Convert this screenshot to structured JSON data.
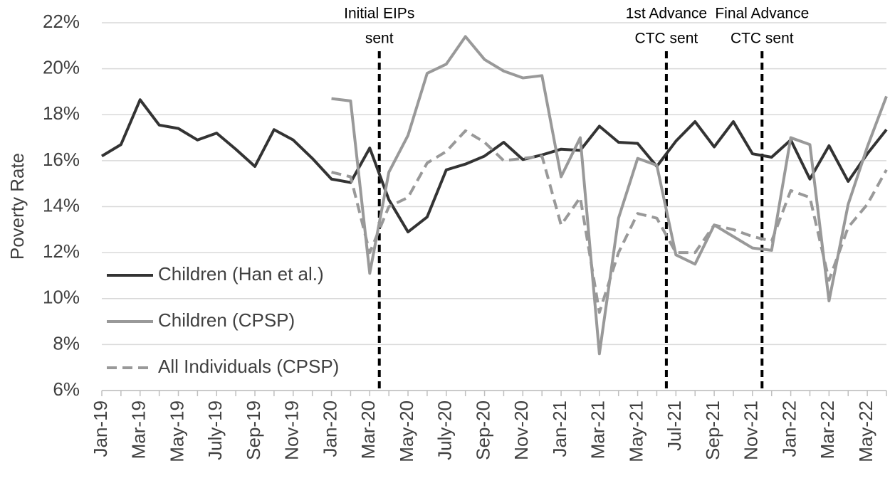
{
  "chart_data": {
    "type": "line",
    "y_label": "Poverty Rate",
    "categories": [
      "Jan-19",
      null,
      "Mar-19",
      null,
      "May-19",
      null,
      "July-19",
      null,
      "Sep-19",
      null,
      "Nov-19",
      null,
      "Jan-20",
      null,
      "Mar-20",
      null,
      "May-20",
      null,
      "July-20",
      null,
      "Sep-20",
      null,
      "Nov-20",
      null,
      "Jan-21",
      null,
      "Mar-21",
      null,
      "May-21",
      null,
      "Jul-21",
      null,
      "Sep-21",
      null,
      "Nov-21",
      null,
      "Jan-22",
      null,
      "Mar-22",
      null,
      "May-22",
      null
    ],
    "series": [
      {
        "name": "Children (Han et al.)",
        "color": "#333333",
        "dashed": false,
        "values": [
          16.2,
          16.7,
          18.65,
          17.55,
          17.4,
          16.9,
          17.2,
          16.5,
          15.75,
          17.35,
          16.9,
          16.1,
          15.2,
          15.05,
          16.55,
          14.3,
          12.9,
          13.55,
          15.6,
          15.85,
          16.2,
          16.8,
          16.05,
          16.25,
          16.5,
          16.45,
          17.5,
          16.8,
          16.75,
          15.75,
          16.85,
          17.7,
          16.6,
          17.7,
          16.3,
          16.15,
          16.9,
          15.2,
          16.65,
          15.1,
          16.3,
          17.35
        ]
      },
      {
        "name": "Children (CPSP)",
        "color": "#999999",
        "dashed": false,
        "values": [
          null,
          null,
          null,
          null,
          null,
          null,
          null,
          null,
          null,
          null,
          null,
          null,
          18.7,
          18.6,
          11.1,
          15.5,
          17.1,
          19.8,
          20.2,
          21.4,
          20.4,
          19.9,
          19.6,
          19.7,
          15.3,
          17.0,
          7.6,
          13.5,
          16.1,
          15.8,
          11.9,
          11.5,
          13.2,
          12.7,
          12.2,
          12.1,
          17.0,
          16.7,
          9.9,
          14.1,
          16.6,
          18.8
        ]
      },
      {
        "name": "All Individuals (CPSP)",
        "color": "#999999",
        "dashed": true,
        "values": [
          null,
          null,
          null,
          null,
          null,
          null,
          null,
          null,
          null,
          null,
          null,
          null,
          15.5,
          15.3,
          12.0,
          14.0,
          14.4,
          15.9,
          16.4,
          17.3,
          16.8,
          16.0,
          16.1,
          16.2,
          13.2,
          14.4,
          9.4,
          12.0,
          13.7,
          13.5,
          12.0,
          12.0,
          13.2,
          13.0,
          12.7,
          12.5,
          14.7,
          14.4,
          10.8,
          13.1,
          14.1,
          15.6
        ]
      }
    ],
    "annotations": [
      [
        "Initial EIPs",
        "sent"
      ],
      [
        "1st Advance",
        "CTC sent"
      ],
      [
        "Final Advance",
        "CTC sent"
      ]
    ],
    "ylim": [
      6,
      22
    ],
    "yticks": [
      {
        "value": 6,
        "label": "6%"
      },
      {
        "value": 8,
        "label": "8%"
      },
      {
        "value": 10,
        "label": "10%"
      },
      {
        "value": 12,
        "label": "12%"
      },
      {
        "value": 14,
        "label": "14%"
      },
      {
        "value": 16,
        "label": "16%"
      },
      {
        "value": 18,
        "label": "18%"
      },
      {
        "value": 20,
        "label": "20%"
      },
      {
        "value": 22,
        "label": "22%"
      }
    ],
    "grid": true
  }
}
